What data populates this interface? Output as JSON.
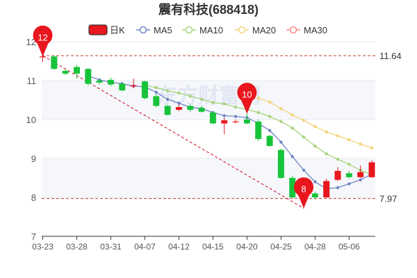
{
  "chart_data": {
    "type": "candlestick",
    "title": "震有科技",
    "title_code": "(688418)",
    "legend": [
      {
        "label": "日K",
        "kind": "box",
        "color": "#e8161d"
      },
      {
        "label": "MA5",
        "kind": "line",
        "color": "#6f86c4"
      },
      {
        "label": "MA10",
        "kind": "line",
        "color": "#a7d47a"
      },
      {
        "label": "MA20",
        "kind": "line",
        "color": "#f3d27a"
      },
      {
        "label": "MA30",
        "kind": "line",
        "color": "#f28a8a"
      }
    ],
    "legend_placement": "top",
    "ylim": [
      7,
      12
    ],
    "y_ticks": [
      "7",
      "8",
      "9",
      "10",
      "11",
      "12"
    ],
    "x_tick_labels": [
      "03-23",
      "03-28",
      "03-31",
      "04-07",
      "04-12",
      "04-15",
      "04-20",
      "04-25",
      "04-28",
      "05-06"
    ],
    "x_tick_indices": [
      0,
      3,
      6,
      9,
      12,
      15,
      18,
      21,
      24,
      27
    ],
    "grid": "horizontal",
    "up_color": "#e8161d",
    "down_color": "#17c33a",
    "candles": [
      {
        "o": 11.62,
        "c": 11.62,
        "h": 11.74,
        "l": 11.48
      },
      {
        "o": 11.62,
        "c": 11.3,
        "h": 11.65,
        "l": 11.28
      },
      {
        "o": 11.25,
        "c": 11.18,
        "h": 11.3,
        "l": 11.14
      },
      {
        "o": 11.35,
        "c": 11.18,
        "h": 11.4,
        "l": 11.05
      },
      {
        "o": 11.3,
        "c": 10.92,
        "h": 11.32,
        "l": 10.88
      },
      {
        "o": 11.0,
        "c": 10.95,
        "h": 11.05,
        "l": 10.9
      },
      {
        "o": 11.02,
        "c": 10.9,
        "h": 11.08,
        "l": 10.86
      },
      {
        "o": 10.92,
        "c": 10.75,
        "h": 10.95,
        "l": 10.72
      },
      {
        "o": 10.85,
        "c": 10.88,
        "h": 11.05,
        "l": 10.8
      },
      {
        "o": 10.98,
        "c": 10.55,
        "h": 11.0,
        "l": 10.52
      },
      {
        "o": 10.6,
        "c": 10.35,
        "h": 10.65,
        "l": 10.32
      },
      {
        "o": 10.35,
        "c": 10.12,
        "h": 10.38,
        "l": 10.1
      },
      {
        "o": 10.25,
        "c": 10.32,
        "h": 10.38,
        "l": 10.22
      },
      {
        "o": 10.35,
        "c": 10.25,
        "h": 10.38,
        "l": 10.2
      },
      {
        "o": 10.3,
        "c": 10.2,
        "h": 10.35,
        "l": 10.18
      },
      {
        "o": 10.18,
        "c": 9.9,
        "h": 10.2,
        "l": 9.88
      },
      {
        "o": 9.9,
        "c": 9.98,
        "h": 10.05,
        "l": 9.62
      },
      {
        "o": 9.95,
        "c": 9.95,
        "h": 10.0,
        "l": 9.9
      },
      {
        "o": 10.0,
        "c": 9.9,
        "h": 10.15,
        "l": 9.88
      },
      {
        "o": 9.95,
        "c": 9.5,
        "h": 10.0,
        "l": 9.45
      },
      {
        "o": 9.58,
        "c": 9.32,
        "h": 9.6,
        "l": 9.3
      },
      {
        "o": 9.22,
        "c": 8.5,
        "h": 9.25,
        "l": 8.48
      },
      {
        "o": 8.5,
        "c": 8.0,
        "h": 8.55,
        "l": 7.98
      },
      {
        "o": 8.05,
        "c": 8.2,
        "h": 8.25,
        "l": 7.72
      },
      {
        "o": 8.1,
        "c": 8.0,
        "h": 8.15,
        "l": 7.95
      },
      {
        "o": 8.0,
        "c": 8.42,
        "h": 8.48,
        "l": 7.98
      },
      {
        "o": 8.45,
        "c": 8.68,
        "h": 8.78,
        "l": 8.42
      },
      {
        "o": 8.62,
        "c": 8.52,
        "h": 8.68,
        "l": 8.48
      },
      {
        "o": 8.52,
        "c": 8.65,
        "h": 8.82,
        "l": 8.5
      },
      {
        "o": 8.52,
        "c": 8.9,
        "h": 8.95,
        "l": 8.5
      }
    ],
    "ma5": [
      null,
      null,
      null,
      null,
      11.12,
      11.02,
      10.96,
      10.92,
      10.86,
      10.84,
      10.7,
      10.52,
      10.42,
      10.32,
      10.28,
      10.18,
      10.1,
      10.08,
      10.05,
      9.9,
      9.72,
      9.42,
      9.05,
      8.7,
      8.4,
      8.22,
      8.25,
      8.35,
      8.45,
      8.6
    ],
    "ma10": [
      null,
      null,
      null,
      null,
      null,
      null,
      null,
      null,
      null,
      10.88,
      10.82,
      10.74,
      10.68,
      10.6,
      10.52,
      10.44,
      10.4,
      10.32,
      10.26,
      10.18,
      10.08,
      9.95,
      9.78,
      9.55,
      9.32,
      9.12,
      8.98,
      8.85,
      8.7,
      8.58
    ],
    "ma20": [
      null,
      null,
      null,
      null,
      null,
      null,
      null,
      null,
      null,
      null,
      null,
      null,
      null,
      null,
      null,
      null,
      null,
      null,
      null,
      10.55,
      10.45,
      10.28,
      10.12,
      9.98,
      9.82,
      9.68,
      9.58,
      9.48,
      9.37,
      9.27
    ],
    "ma30": [],
    "reference_lines": [
      {
        "value": 11.64,
        "label": "11.64"
      },
      {
        "value": 7.97,
        "label": "7.97"
      }
    ],
    "markers": [
      {
        "label": "12",
        "index": 0,
        "value": 11.62
      },
      {
        "label": "10",
        "index": 18,
        "value": 10.15
      },
      {
        "label": "8",
        "index": 23,
        "value": 7.72
      }
    ],
    "trendline": {
      "from_index": 0,
      "from_value": 11.64,
      "to_index": 23,
      "to_value": 7.72
    },
    "watermark": "东方财富网"
  }
}
